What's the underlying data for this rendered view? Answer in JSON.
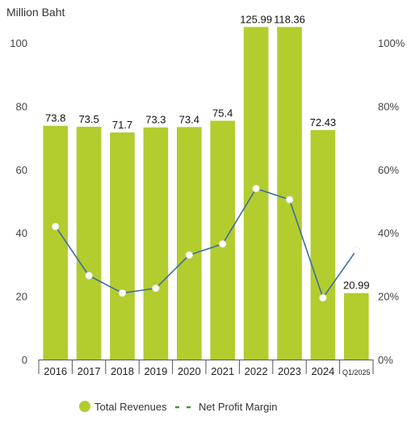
{
  "chart_data": {
    "type": "bar",
    "categories": [
      "2016",
      "2017",
      "2018",
      "2019",
      "2020",
      "2021",
      "2022",
      "2023",
      "2024",
      "Q1/2025"
    ],
    "series": [
      {
        "name": "Total Revenues",
        "type": "bar",
        "axis": "left",
        "values": [
          73.8,
          73.5,
          71.7,
          73.3,
          73.4,
          75.4,
          125.99,
          118.36,
          72.43,
          20.99
        ],
        "value_labels": [
          "73.8",
          "73.5",
          "71.7",
          "73.3",
          "73.4",
          "75.4",
          "125.99",
          "118.36",
          "72.43",
          "20.99"
        ],
        "color": "#b3cc2e"
      },
      {
        "name": "Net Profit Margin",
        "type": "line",
        "axis": "right",
        "values": [
          42,
          26.5,
          21,
          22.5,
          33,
          36.5,
          54,
          50.5,
          19.5,
          34.5
        ],
        "color": "#3c6fa5"
      }
    ],
    "ylabel": "Million Baht",
    "ylim": [
      0,
      100
    ],
    "yticks": [
      "0",
      "20",
      "40",
      "60",
      "80",
      "100"
    ],
    "y2lim": [
      0,
      100
    ],
    "y2ticks": [
      "0%",
      "20%",
      "40%",
      "60%",
      "80%",
      "100%"
    ],
    "grid": false,
    "legend_position": "bottom",
    "legend": [
      {
        "label": "Total Revenues",
        "marker": "circle",
        "color": "#b3cc2e"
      },
      {
        "label": "Net Profit Margin",
        "marker": "dashed-line",
        "color": "#3a9a3a"
      }
    ]
  }
}
